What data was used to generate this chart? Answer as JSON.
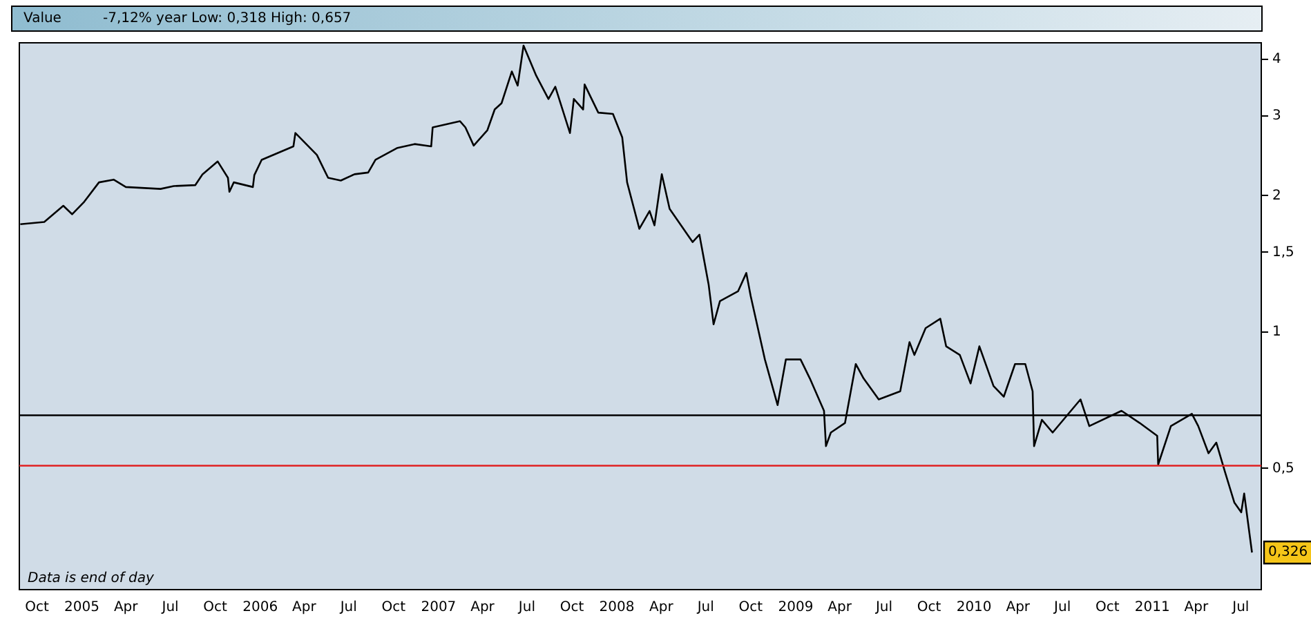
{
  "chart_data": {
    "type": "line",
    "title": "Value",
    "annotations": [
      "-7,12%  year Low: 0,318 High: 0,657",
      "Data is end of day",
      {
        "text": "0,326",
        "x": "2011-07-24",
        "y": 0.326
      }
    ],
    "log": "y",
    "legend": false,
    "grid": false,
    "marker": "none",
    "line_style": "solid",
    "xlim": [
      "2004-08-26",
      "2011-08-12"
    ],
    "xticks": [
      {
        "value": "2004-10-01",
        "label": "Oct"
      },
      {
        "value": "2005-01-01",
        "label": "2005"
      },
      {
        "value": "2005-04-01",
        "label": "Apr"
      },
      {
        "value": "2005-07-01",
        "label": "Jul"
      },
      {
        "value": "2005-10-01",
        "label": "Oct"
      },
      {
        "value": "2006-01-01",
        "label": "2006"
      },
      {
        "value": "2006-04-01",
        "label": "Apr"
      },
      {
        "value": "2006-07-01",
        "label": "Jul"
      },
      {
        "value": "2006-10-01",
        "label": "Oct"
      },
      {
        "value": "2007-01-01",
        "label": "2007"
      },
      {
        "value": "2007-04-01",
        "label": "Apr"
      },
      {
        "value": "2007-07-01",
        "label": "Jul"
      },
      {
        "value": "2007-10-01",
        "label": "Oct"
      },
      {
        "value": "2008-01-01",
        "label": "2008"
      },
      {
        "value": "2008-04-01",
        "label": "Apr"
      },
      {
        "value": "2008-07-01",
        "label": "Jul"
      },
      {
        "value": "2008-10-01",
        "label": "Oct"
      },
      {
        "value": "2009-01-01",
        "label": "2009"
      },
      {
        "value": "2009-04-01",
        "label": "Apr"
      },
      {
        "value": "2009-07-01",
        "label": "Jul"
      },
      {
        "value": "2009-10-01",
        "label": "Oct"
      },
      {
        "value": "2010-01-01",
        "label": "2010"
      },
      {
        "value": "2010-04-01",
        "label": "Apr"
      },
      {
        "value": "2010-07-01",
        "label": "Jul"
      },
      {
        "value": "2010-10-01",
        "label": "Oct"
      },
      {
        "value": "2011-01-01",
        "label": "2011"
      },
      {
        "value": "2011-04-01",
        "label": "Apr"
      },
      {
        "value": "2011-07-01",
        "label": "Jul"
      }
    ],
    "ylim": [
      0.27,
      4.35
    ],
    "yticks": [
      {
        "value": 0.5,
        "label": "0,5"
      },
      1,
      {
        "value": 1.5,
        "label": "1,5"
      },
      2,
      3,
      4
    ],
    "ref_lines": [
      {
        "axis": "y",
        "value": 0.655,
        "color": "#000000"
      },
      {
        "axis": "y",
        "value": 0.507,
        "color": "#e02020"
      }
    ],
    "x": [
      "2004-08-28",
      "2004-10-16",
      "2004-11-24",
      "2004-12-12",
      "2005-01-06",
      "2005-02-05",
      "2005-03-07",
      "2005-04-01",
      "2005-06-11",
      "2005-07-08",
      "2005-08-21",
      "2005-09-05",
      "2005-10-06",
      "2005-10-27",
      "2005-10-30",
      "2005-11-08",
      "2005-12-17",
      "2005-12-20",
      "2006-01-04",
      "2006-03-10",
      "2006-03-14",
      "2006-04-27",
      "2006-05-20",
      "2006-06-15",
      "2006-07-13",
      "2006-08-10",
      "2006-08-25",
      "2006-10-09",
      "2006-11-13",
      "2006-12-17",
      "2006-12-20",
      "2007-02-14",
      "2007-02-25",
      "2007-03-14",
      "2007-04-11",
      "2007-04-26",
      "2007-05-10",
      "2007-05-31",
      "2007-06-12",
      "2007-06-24",
      "2007-07-20",
      "2007-08-14",
      "2007-08-28",
      "2007-09-27",
      "2007-10-05",
      "2007-10-24",
      "2007-10-27",
      "2007-11-24",
      "2007-12-24",
      "2008-01-12",
      "2008-01-22",
      "2008-02-16",
      "2008-03-08",
      "2008-03-18",
      "2008-04-02",
      "2008-04-18",
      "2008-06-04",
      "2008-06-18",
      "2008-07-07",
      "2008-07-17",
      "2008-07-30",
      "2008-09-05",
      "2008-09-22",
      "2008-10-01",
      "2008-10-30",
      "2008-11-25",
      "2008-12-12",
      "2009-01-11",
      "2009-01-30",
      "2009-02-28",
      "2009-03-04",
      "2009-03-14",
      "2009-04-12",
      "2009-05-04",
      "2009-05-20",
      "2009-06-20",
      "2009-08-03",
      "2009-08-22",
      "2009-09-01",
      "2009-09-24",
      "2009-10-24",
      "2009-11-05",
      "2009-12-03",
      "2009-12-25",
      "2010-01-12",
      "2010-02-10",
      "2010-03-03",
      "2010-03-26",
      "2010-04-16",
      "2010-05-01",
      "2010-05-04",
      "2010-05-20",
      "2010-06-11",
      "2010-08-07",
      "2010-08-25",
      "2010-10-30",
      "2010-12-06",
      "2011-01-11",
      "2011-01-13",
      "2011-02-08",
      "2011-03-23",
      "2011-04-05",
      "2011-04-26",
      "2011-05-12",
      "2011-05-30",
      "2011-06-18",
      "2011-07-02",
      "2011-07-08",
      "2011-07-24"
    ],
    "series": [
      {
        "color": "#000000",
        "values": [
          1.73,
          1.75,
          1.9,
          1.82,
          1.94,
          2.14,
          2.17,
          2.09,
          2.07,
          2.1,
          2.11,
          2.23,
          2.38,
          2.19,
          2.04,
          2.14,
          2.09,
          2.22,
          2.4,
          2.57,
          2.75,
          2.46,
          2.19,
          2.16,
          2.23,
          2.25,
          2.4,
          2.55,
          2.6,
          2.57,
          2.83,
          2.92,
          2.83,
          2.58,
          2.79,
          3.1,
          3.2,
          3.76,
          3.5,
          4.29,
          3.68,
          3.27,
          3.48,
          2.75,
          3.27,
          3.1,
          3.52,
          3.05,
          3.03,
          2.69,
          2.14,
          1.69,
          1.85,
          1.72,
          2.23,
          1.87,
          1.58,
          1.64,
          1.27,
          1.04,
          1.17,
          1.23,
          1.35,
          1.2,
          0.87,
          0.69,
          0.87,
          0.87,
          0.79,
          0.67,
          0.56,
          0.6,
          0.63,
          0.85,
          0.79,
          0.71,
          0.74,
          0.95,
          0.89,
          1.02,
          1.07,
          0.93,
          0.89,
          0.77,
          0.93,
          0.76,
          0.72,
          0.85,
          0.85,
          0.74,
          0.56,
          0.64,
          0.6,
          0.71,
          0.62,
          0.67,
          0.63,
          0.59,
          0.51,
          0.62,
          0.66,
          0.62,
          0.54,
          0.57,
          0.49,
          0.42,
          0.4,
          0.44,
          0.326
        ]
      }
    ]
  }
}
